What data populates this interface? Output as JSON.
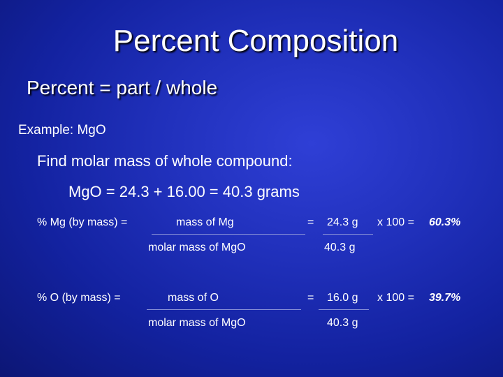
{
  "title": "Percent Composition",
  "subtitle": "Percent = part / whole",
  "example": "Example:  MgO",
  "find_step": "Find molar mass of whole compound:",
  "molar_mass_equation": "MgO = 24.3 +  16.00 = 40.3 grams",
  "mg_calc": {
    "label": "% Mg (by mass) =",
    "numerator": "mass of Mg",
    "denominator": "molar mass of MgO",
    "equals": "=",
    "value_num": "24.3 g",
    "value_den": "40.3 g",
    "times": "x 100 =",
    "result": "60.3%"
  },
  "o_calc": {
    "label": "% O (by mass) =",
    "numerator": "mass of O",
    "denominator": "molar mass of MgO",
    "equals": "=",
    "value_num": "16.0 g",
    "value_den": "40.3 g",
    "times": "x 100 =",
    "result": "39.7%"
  },
  "colors": {
    "background": "#1a2ab0",
    "text": "#ffffff",
    "fraction_line": "#8c94d8"
  }
}
